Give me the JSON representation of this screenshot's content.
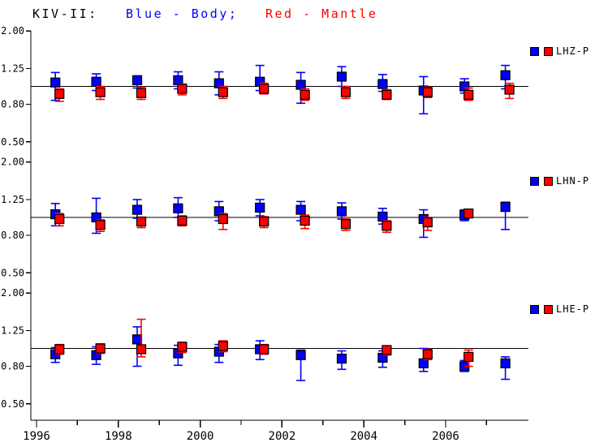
{
  "title": {
    "station_label": "KIV-II:",
    "body_legend": "Blue - Body;",
    "mantle_legend": "Red - Mantle"
  },
  "colors": {
    "body": "#0000ff",
    "mantle": "#ff0000",
    "axis": "#000000",
    "reference_line": "#000000",
    "background": "#ffffff"
  },
  "chart_data": {
    "type": "scatter",
    "y_scale": "log",
    "reference_value": 1.0,
    "y_ticks": [
      {
        "label": "2.00",
        "value": 2.0
      },
      {
        "label": "1.25",
        "value": 1.25
      },
      {
        "label": "0.80",
        "value": 0.8
      },
      {
        "label": "0.50",
        "value": 0.5
      }
    ],
    "x_major_ticks": [
      {
        "label": "1996",
        "value": 1996
      },
      {
        "label": "1998",
        "value": 1998
      },
      {
        "label": "2000",
        "value": 2000
      },
      {
        "label": "2002",
        "value": 2002
      },
      {
        "label": "2004",
        "value": 2004
      },
      {
        "label": "2006",
        "value": 2006
      }
    ],
    "x_minor_ticks": [
      1997,
      1999,
      2001,
      2003,
      2005,
      2007
    ],
    "x_range": [
      1995.86,
      2008.02
    ],
    "series_names": {
      "body": "Body",
      "mantle": "Mantle"
    },
    "panels": [
      {
        "label": "LHZ-P",
        "points": [
          {
            "year": 1996.5,
            "body": {
              "v": 1.05,
              "lo": 0.84,
              "hi": 1.19
            },
            "mantle": {
              "v": 0.91,
              "lo": 0.83,
              "hi": 0.97
            }
          },
          {
            "year": 1997.5,
            "body": {
              "v": 1.06,
              "lo": 0.95,
              "hi": 1.17
            },
            "mantle": {
              "v": 0.93,
              "lo": 0.85,
              "hi": 1.0
            }
          },
          {
            "year": 1998.5,
            "body": {
              "v": 1.08,
              "lo": 0.98,
              "hi": 1.14
            },
            "mantle": {
              "v": 0.92,
              "lo": 0.85,
              "hi": 0.99
            }
          },
          {
            "year": 1999.5,
            "body": {
              "v": 1.08,
              "lo": 0.97,
              "hi": 1.2
            },
            "mantle": {
              "v": 0.97,
              "lo": 0.9,
              "hi": 1.03
            }
          },
          {
            "year": 2000.5,
            "body": {
              "v": 1.04,
              "lo": 0.9,
              "hi": 1.2
            },
            "mantle": {
              "v": 0.93,
              "lo": 0.86,
              "hi": 1.0
            }
          },
          {
            "year": 2001.5,
            "body": {
              "v": 1.06,
              "lo": 0.95,
              "hi": 1.3
            },
            "mantle": {
              "v": 0.97,
              "lo": 0.91,
              "hi": 1.04
            }
          },
          {
            "year": 2002.5,
            "body": {
              "v": 1.02,
              "lo": 0.81,
              "hi": 1.19
            },
            "mantle": {
              "v": 0.9,
              "lo": 0.84,
              "hi": 0.97
            }
          },
          {
            "year": 2003.5,
            "body": {
              "v": 1.13,
              "lo": 1.0,
              "hi": 1.28
            },
            "mantle": {
              "v": 0.93,
              "lo": 0.86,
              "hi": 1.0
            }
          },
          {
            "year": 2004.5,
            "body": {
              "v": 1.03,
              "lo": 0.94,
              "hi": 1.16
            },
            "mantle": {
              "v": 0.9,
              "lo": 0.85,
              "hi": 0.96
            }
          },
          {
            "year": 2005.5,
            "body": {
              "v": 0.95,
              "lo": 0.71,
              "hi": 1.13
            },
            "mantle": {
              "v": 0.93,
              "lo": 0.87,
              "hi": 0.99
            }
          },
          {
            "year": 2006.5,
            "body": {
              "v": 1.0,
              "lo": 0.92,
              "hi": 1.1
            },
            "mantle": {
              "v": 0.9,
              "lo": 0.84,
              "hi": 0.98
            }
          },
          {
            "year": 2007.5,
            "body": {
              "v": 1.15,
              "lo": 0.97,
              "hi": 1.3
            },
            "mantle": {
              "v": 0.96,
              "lo": 0.86,
              "hi": 1.04
            }
          }
        ]
      },
      {
        "label": "LHN-P",
        "points": [
          {
            "year": 1996.5,
            "body": {
              "v": 1.04,
              "lo": 0.9,
              "hi": 1.19
            },
            "mantle": {
              "v": 0.98,
              "lo": 0.9,
              "hi": 1.05
            }
          },
          {
            "year": 1997.5,
            "body": {
              "v": 1.0,
              "lo": 0.82,
              "hi": 1.27
            },
            "mantle": {
              "v": 0.91,
              "lo": 0.84,
              "hi": 0.97
            }
          },
          {
            "year": 1998.5,
            "body": {
              "v": 1.1,
              "lo": 0.99,
              "hi": 1.25
            },
            "mantle": {
              "v": 0.95,
              "lo": 0.88,
              "hi": 1.0
            }
          },
          {
            "year": 1999.5,
            "body": {
              "v": 1.12,
              "lo": 1.0,
              "hi": 1.28
            },
            "mantle": {
              "v": 0.96,
              "lo": 0.9,
              "hi": 1.02
            }
          },
          {
            "year": 2000.5,
            "body": {
              "v": 1.08,
              "lo": 0.96,
              "hi": 1.22
            },
            "mantle": {
              "v": 0.98,
              "lo": 0.86,
              "hi": 1.05
            }
          },
          {
            "year": 2001.5,
            "body": {
              "v": 1.13,
              "lo": 1.02,
              "hi": 1.25
            },
            "mantle": {
              "v": 0.95,
              "lo": 0.88,
              "hi": 1.01
            }
          },
          {
            "year": 2002.5,
            "body": {
              "v": 1.1,
              "lo": 0.96,
              "hi": 1.22
            },
            "mantle": {
              "v": 0.96,
              "lo": 0.87,
              "hi": 1.03
            }
          },
          {
            "year": 2003.5,
            "body": {
              "v": 1.08,
              "lo": 0.98,
              "hi": 1.2
            },
            "mantle": {
              "v": 0.92,
              "lo": 0.85,
              "hi": 0.98
            }
          },
          {
            "year": 2004.5,
            "body": {
              "v": 1.01,
              "lo": 0.92,
              "hi": 1.12
            },
            "mantle": {
              "v": 0.9,
              "lo": 0.83,
              "hi": 0.96
            }
          },
          {
            "year": 2005.5,
            "body": {
              "v": 0.98,
              "lo": 0.78,
              "hi": 1.1
            },
            "mantle": {
              "v": 0.94,
              "lo": 0.85,
              "hi": 1.0
            }
          },
          {
            "year": 2006.5,
            "body": {
              "v": 1.03,
              "lo": 0.96,
              "hi": 1.1
            },
            "mantle": {
              "v": 1.05,
              "lo": 1.0,
              "hi": 1.1
            }
          },
          {
            "year": 2007.5,
            "body": {
              "v": 1.14,
              "lo": 0.86,
              "hi": 1.21
            },
            "mantle": null
          }
        ]
      },
      {
        "label": "LHE-P",
        "points": [
          {
            "year": 1996.5,
            "body": {
              "v": 0.93,
              "lo": 0.84,
              "hi": 1.01
            },
            "mantle": {
              "v": 0.99,
              "lo": 0.93,
              "hi": 1.05
            }
          },
          {
            "year": 1997.5,
            "body": {
              "v": 0.92,
              "lo": 0.82,
              "hi": 1.02
            },
            "mantle": {
              "v": 1.0,
              "lo": 0.94,
              "hi": 1.06
            }
          },
          {
            "year": 1998.5,
            "body": {
              "v": 1.12,
              "lo": 0.8,
              "hi": 1.31
            },
            "mantle": {
              "v": 0.99,
              "lo": 0.9,
              "hi": 1.44
            }
          },
          {
            "year": 1999.5,
            "body": {
              "v": 0.94,
              "lo": 0.81,
              "hi": 1.04
            },
            "mantle": {
              "v": 1.02,
              "lo": 0.95,
              "hi": 1.08
            }
          },
          {
            "year": 2000.5,
            "body": {
              "v": 0.96,
              "lo": 0.84,
              "hi": 1.05
            },
            "mantle": {
              "v": 1.03,
              "lo": 0.96,
              "hi": 1.1
            }
          },
          {
            "year": 2001.5,
            "body": {
              "v": 0.99,
              "lo": 0.87,
              "hi": 1.1
            },
            "mantle": {
              "v": 0.99,
              "lo": 0.93,
              "hi": 1.05
            }
          },
          {
            "year": 2002.5,
            "body": {
              "v": 0.92,
              "lo": 0.67,
              "hi": 0.98
            },
            "mantle": null
          },
          {
            "year": 2003.5,
            "body": {
              "v": 0.88,
              "lo": 0.77,
              "hi": 0.97
            },
            "mantle": null
          },
          {
            "year": 2004.5,
            "body": {
              "v": 0.89,
              "lo": 0.79,
              "hi": 0.97
            },
            "mantle": {
              "v": 0.98,
              "lo": 0.92,
              "hi": 1.03
            }
          },
          {
            "year": 2005.5,
            "body": {
              "v": 0.83,
              "lo": 0.75,
              "hi": 1.0
            },
            "mantle": {
              "v": 0.93,
              "lo": 0.87,
              "hi": 0.99
            }
          },
          {
            "year": 2006.5,
            "body": {
              "v": 0.8,
              "lo": 0.75,
              "hi": 0.86
            },
            "mantle": {
              "v": 0.9,
              "lo": 0.8,
              "hi": 0.98
            }
          },
          {
            "year": 2007.5,
            "body": {
              "v": 0.83,
              "lo": 0.68,
              "hi": 0.9
            },
            "mantle": null
          }
        ]
      }
    ]
  }
}
